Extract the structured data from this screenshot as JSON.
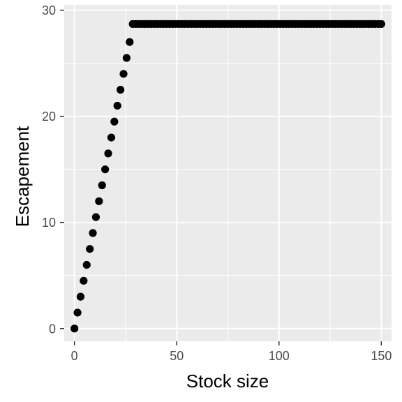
{
  "chart_data": {
    "type": "scatter",
    "xlabel": "Stock size",
    "ylabel": "Escapement",
    "xlim": [
      -5,
      155
    ],
    "ylim": [
      -1.2,
      30.5
    ],
    "x_ticks": [
      0,
      50,
      100,
      150
    ],
    "x_tick_labels": [
      "0",
      "50",
      "100",
      "150"
    ],
    "y_ticks": [
      0,
      10,
      20,
      30
    ],
    "y_tick_labels": [
      "0",
      "10",
      "20",
      "30"
    ],
    "grid": true,
    "colors": {
      "panel_background": "#ebebeb",
      "grid": "#ffffff",
      "points": "#000000",
      "tick_marks": "#333333"
    },
    "series": [
      {
        "x": [
          0,
          1.5,
          3,
          4.5,
          6,
          7.5,
          9,
          10.5,
          12,
          13.5,
          15,
          16.5,
          18,
          19.5,
          21,
          22.5,
          24,
          25.5,
          27,
          28.5,
          30,
          31.5,
          33,
          34.5,
          36,
          37.5,
          39,
          40.5,
          42,
          43.5,
          45,
          46.5,
          48,
          49.5,
          51,
          52.5,
          54,
          55.5,
          57,
          58.5,
          60,
          61.5,
          63,
          64.5,
          66,
          67.5,
          69,
          70.5,
          72,
          73.5,
          75,
          76.5,
          78,
          79.5,
          81,
          82.5,
          84,
          85.5,
          87,
          88.5,
          90,
          91.5,
          93,
          94.5,
          96,
          97.5,
          99,
          100.5,
          102,
          103.5,
          105,
          106.5,
          108,
          109.5,
          111,
          112.5,
          114,
          115.5,
          117,
          118.5,
          120,
          121.5,
          123,
          124.5,
          126,
          127.5,
          129,
          130.5,
          132,
          133.5,
          135,
          136.5,
          138,
          139.5,
          141,
          142.5,
          144,
          145.5,
          147,
          148.5,
          150
        ],
        "y": [
          0,
          1.5,
          3,
          4.5,
          6,
          7.5,
          9,
          10.5,
          12,
          13.5,
          15,
          16.5,
          18,
          19.5,
          21,
          22.5,
          24,
          25.5,
          27,
          28.7,
          28.7,
          28.7,
          28.7,
          28.7,
          28.7,
          28.7,
          28.7,
          28.7,
          28.7,
          28.7,
          28.7,
          28.7,
          28.7,
          28.7,
          28.7,
          28.7,
          28.7,
          28.7,
          28.7,
          28.7,
          28.7,
          28.7,
          28.7,
          28.7,
          28.7,
          28.7,
          28.7,
          28.7,
          28.7,
          28.7,
          28.7,
          28.7,
          28.7,
          28.7,
          28.7,
          28.7,
          28.7,
          28.7,
          28.7,
          28.7,
          28.7,
          28.7,
          28.7,
          28.7,
          28.7,
          28.7,
          28.7,
          28.7,
          28.7,
          28.7,
          28.7,
          28.7,
          28.7,
          28.7,
          28.7,
          28.7,
          28.7,
          28.7,
          28.7,
          28.7,
          28.7,
          28.7,
          28.7,
          28.7,
          28.7,
          28.7,
          28.7,
          28.7,
          28.7,
          28.7,
          28.7,
          28.7,
          28.7,
          28.7,
          28.7,
          28.7,
          28.7,
          28.7,
          28.7,
          28.7,
          28.7
        ]
      }
    ]
  }
}
